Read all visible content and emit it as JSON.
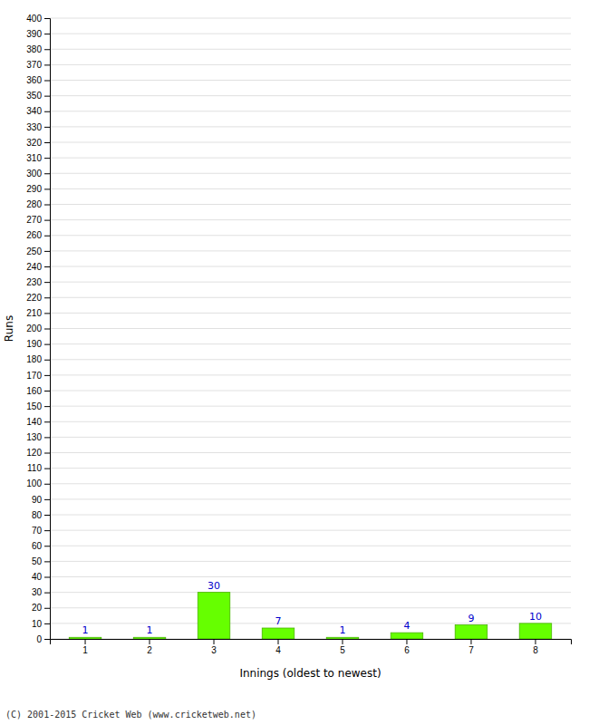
{
  "chart_data": {
    "type": "bar",
    "xlabel": "Innings (oldest to newest)",
    "ylabel": "Runs",
    "categories": [
      "1",
      "2",
      "3",
      "4",
      "5",
      "6",
      "7",
      "8"
    ],
    "values": [
      1,
      1,
      30,
      7,
      1,
      4,
      9,
      10
    ],
    "color": "#66ff00",
    "ylim": [
      0,
      400
    ],
    "yticks": [
      0,
      10,
      20,
      30,
      40,
      50,
      60,
      70,
      80,
      90,
      100,
      110,
      120,
      130,
      140,
      150,
      160,
      170,
      180,
      190,
      200,
      210,
      220,
      230,
      240,
      250,
      260,
      270,
      280,
      290,
      300,
      310,
      320,
      330,
      340,
      350,
      360,
      370,
      380,
      390,
      400
    ],
    "grid": true,
    "data_labels": true,
    "annotations": [
      "(C) 2001-2015 Cricket Web (www.cricketweb.net)"
    ]
  }
}
